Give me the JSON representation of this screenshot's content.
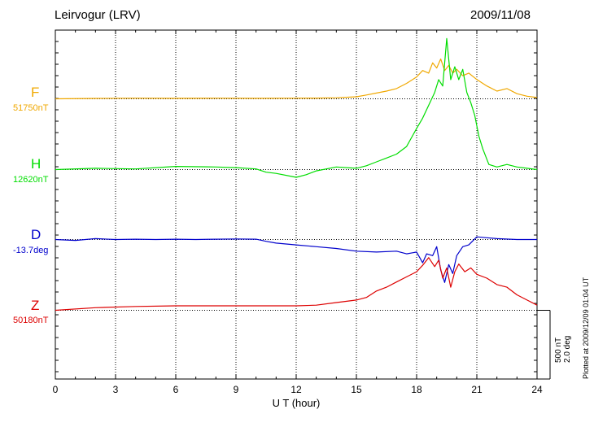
{
  "header": {
    "station": "Leirvogur (LRV)",
    "date": "2009/11/08"
  },
  "scale_bar": {
    "nt": "500 nT",
    "deg": "2.0 deg"
  },
  "plotted_note": "Plotted at 2009/12/09 01:04 UT",
  "components": [
    {
      "letter": "F",
      "baseline": "51750nT",
      "color": "#f0a800"
    },
    {
      "letter": "H",
      "baseline": "12620nT",
      "color": "#00dd00"
    },
    {
      "letter": "D",
      "baseline": "-13.7deg",
      "color": "#0000cc"
    },
    {
      "letter": "Z",
      "baseline": "50180nT",
      "color": "#dd0000"
    }
  ],
  "chart_data": {
    "type": "line",
    "title": "",
    "xlabel": "U T (hour)",
    "ylabel": "",
    "xlim": [
      0,
      24
    ],
    "xticks": [
      "0",
      "3",
      "6",
      "9",
      "12",
      "15",
      "18",
      "21",
      "24"
    ],
    "grid": true,
    "series": [
      {
        "name": "F",
        "color": "#f0a800",
        "x": [
          0,
          2,
          4,
          6,
          8,
          10,
          12,
          13,
          14,
          15,
          15.5,
          16,
          16.5,
          17,
          17.5,
          18,
          18.3,
          18.6,
          18.8,
          19,
          19.2,
          19.4,
          19.6,
          19.8,
          20,
          20.3,
          20.6,
          21,
          21.5,
          22,
          22.5,
          23,
          23.5,
          24
        ],
        "values": [
          0,
          3,
          5,
          4,
          5,
          4,
          5,
          6,
          8,
          16,
          30,
          45,
          60,
          80,
          120,
          170,
          220,
          200,
          280,
          240,
          310,
          220,
          260,
          200,
          230,
          180,
          200,
          150,
          100,
          60,
          80,
          40,
          20,
          10
        ]
      },
      {
        "name": "H",
        "color": "#00dd00",
        "x": [
          0,
          2,
          4,
          6,
          8,
          9,
          10,
          10.5,
          11,
          12,
          12.5,
          13,
          14,
          15,
          15.5,
          16,
          16.5,
          17,
          17.5,
          18,
          18.3,
          18.6,
          18.9,
          19.1,
          19.3,
          19.5,
          19.7,
          19.9,
          20.1,
          20.3,
          20.5,
          20.7,
          20.9,
          21.1,
          21.3,
          21.6,
          22,
          22.5,
          23,
          23.5,
          24
        ],
        "values": [
          0,
          10,
          5,
          25,
          20,
          15,
          5,
          -20,
          -30,
          -60,
          -40,
          -10,
          20,
          10,
          30,
          60,
          90,
          120,
          180,
          320,
          400,
          500,
          600,
          700,
          650,
          1020,
          700,
          800,
          700,
          780,
          600,
          520,
          420,
          260,
          160,
          40,
          20,
          40,
          20,
          10,
          0
        ]
      },
      {
        "name": "D",
        "color": "#0000cc",
        "x": [
          0,
          1,
          2,
          3,
          4,
          5,
          6,
          7,
          8,
          9,
          10,
          10.5,
          11,
          12,
          13,
          14,
          15,
          16,
          17,
          17.5,
          18,
          18.3,
          18.5,
          18.8,
          19,
          19.2,
          19.4,
          19.6,
          19.8,
          20,
          20.3,
          20.6,
          21,
          21.5,
          22,
          23,
          24
        ],
        "values": [
          0,
          -0.05,
          0.05,
          0,
          0.02,
          0,
          0.02,
          0,
          0.02,
          0.03,
          0.02,
          -0.1,
          -0.2,
          -0.3,
          -0.4,
          -0.5,
          -0.65,
          -0.7,
          -0.65,
          -0.8,
          -0.7,
          -1.3,
          -0.8,
          -0.9,
          -0.4,
          -1.7,
          -2.4,
          -1.4,
          -1.9,
          -0.9,
          -0.4,
          -0.3,
          0.15,
          0.1,
          0.05,
          0,
          0
        ]
      },
      {
        "name": "Z",
        "color": "#dd0000",
        "x": [
          0,
          2,
          4,
          6,
          8,
          10,
          12,
          13,
          14,
          15,
          15.5,
          16,
          16.5,
          17,
          17.5,
          18,
          18.3,
          18.6,
          18.9,
          19.1,
          19.3,
          19.5,
          19.7,
          19.9,
          20.1,
          20.4,
          20.7,
          21,
          21.5,
          22,
          22.5,
          23,
          23.5,
          24
        ],
        "values": [
          0,
          20,
          30,
          35,
          35,
          35,
          35,
          40,
          60,
          80,
          100,
          150,
          180,
          220,
          260,
          300,
          350,
          410,
          340,
          390,
          250,
          330,
          180,
          300,
          360,
          300,
          330,
          280,
          250,
          200,
          180,
          120,
          80,
          40
        ]
      }
    ]
  }
}
